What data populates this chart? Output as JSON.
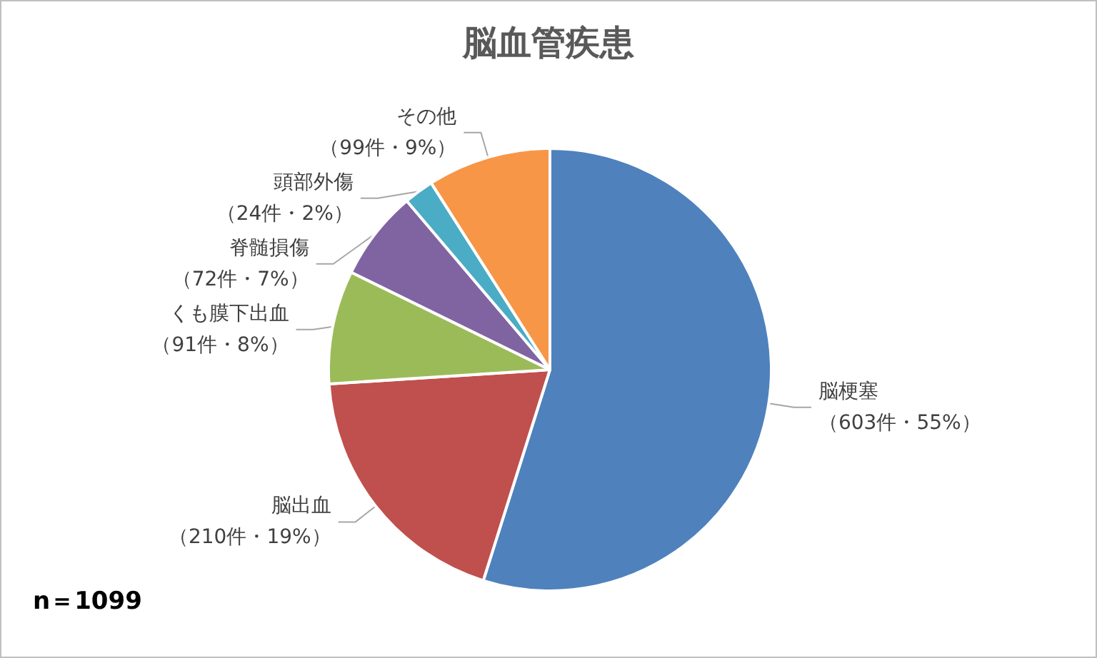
{
  "chart_data": {
    "type": "pie",
    "title": "脳血管疾患",
    "categories": [
      "脳梗塞",
      "脳出血",
      "くも膜下出血",
      "脊髄損傷",
      "頭部外傷",
      "その他"
    ],
    "values": [
      603,
      210,
      91,
      72,
      24,
      99
    ],
    "value_labels": [
      "（603件・55%）",
      "（210件・19%）",
      "（91件・8%）",
      "（72件・7%）",
      "（24件・2%）",
      "（99件・9%）"
    ],
    "colors": [
      "#4f81bd",
      "#c0504d",
      "#9bbb59",
      "#8064a2",
      "#4bacc6",
      "#f79646"
    ],
    "annotations": [
      "n＝1099"
    ],
    "legend": false
  }
}
